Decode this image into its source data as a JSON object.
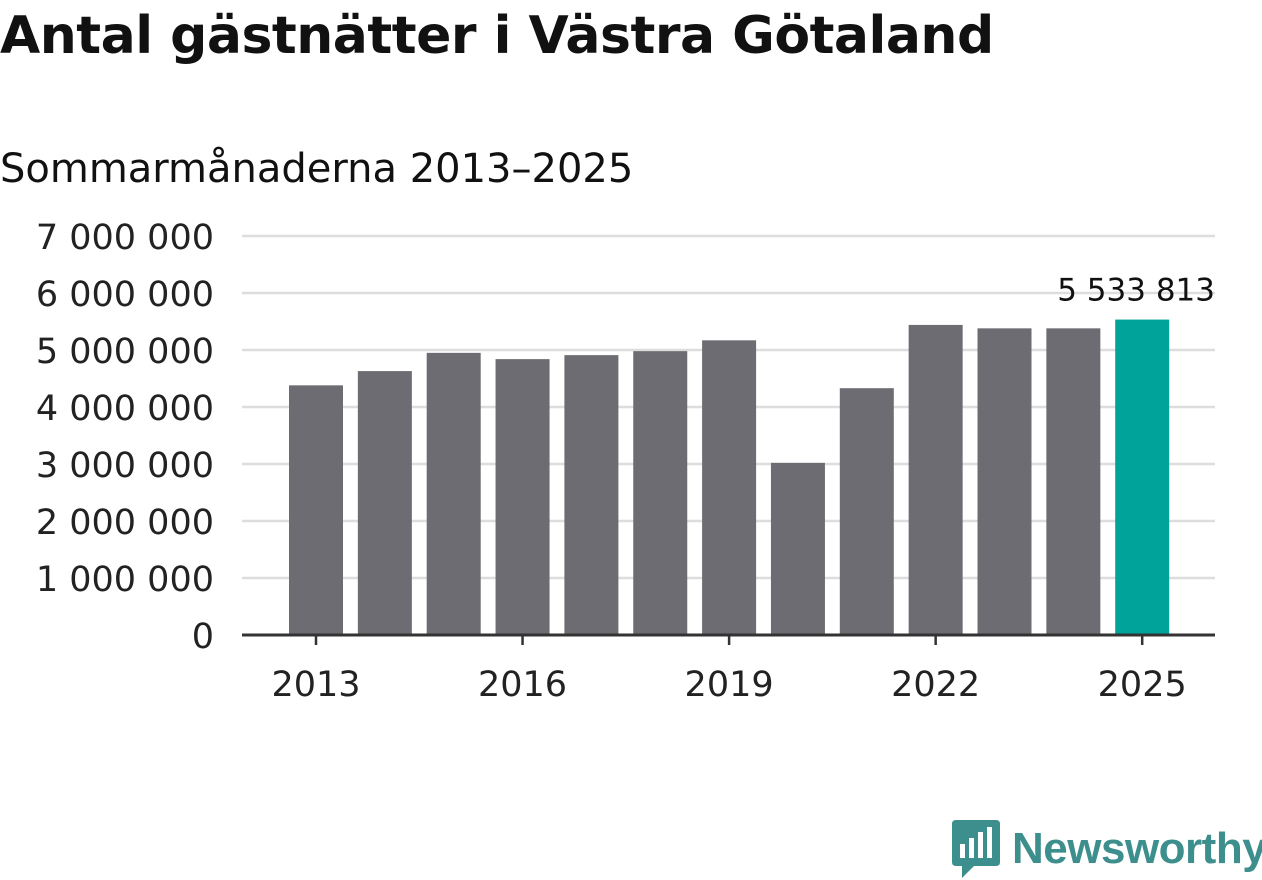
{
  "title": "Antal gästnätter i Västra Götaland",
  "subtitle": "Sommarmånaderna 2013–2025",
  "brand": {
    "name": "Newsworthy",
    "color": "#3d8f8d"
  },
  "colors": {
    "bar": "#6d6c72",
    "highlight": "#00a39a",
    "grid": "#dddddd",
    "axis": "#333333",
    "text": "#222222"
  },
  "chart_data": {
    "type": "bar",
    "categories": [
      "2013",
      "2014",
      "2015",
      "2016",
      "2017",
      "2018",
      "2019",
      "2020",
      "2021",
      "2022",
      "2023",
      "2024",
      "2025"
    ],
    "values": [
      4380000,
      4630000,
      4950000,
      4840000,
      4910000,
      4980000,
      5170000,
      3020000,
      4330000,
      5440000,
      5380000,
      5380000,
      5533813
    ],
    "highlight_index": 12,
    "data_label": "5 533 813",
    "x_tick_labels": [
      "2013",
      "2016",
      "2019",
      "2022",
      "2025"
    ],
    "y_tick_values": [
      0,
      1000000,
      2000000,
      3000000,
      4000000,
      5000000,
      6000000,
      7000000
    ],
    "y_tick_labels": [
      "0",
      "1 000 000",
      "2 000 000",
      "3 000 000",
      "4 000 000",
      "5 000 000",
      "6 000 000",
      "7 000 000"
    ],
    "ylim": [
      0,
      7000000
    ],
    "grid": true
  }
}
